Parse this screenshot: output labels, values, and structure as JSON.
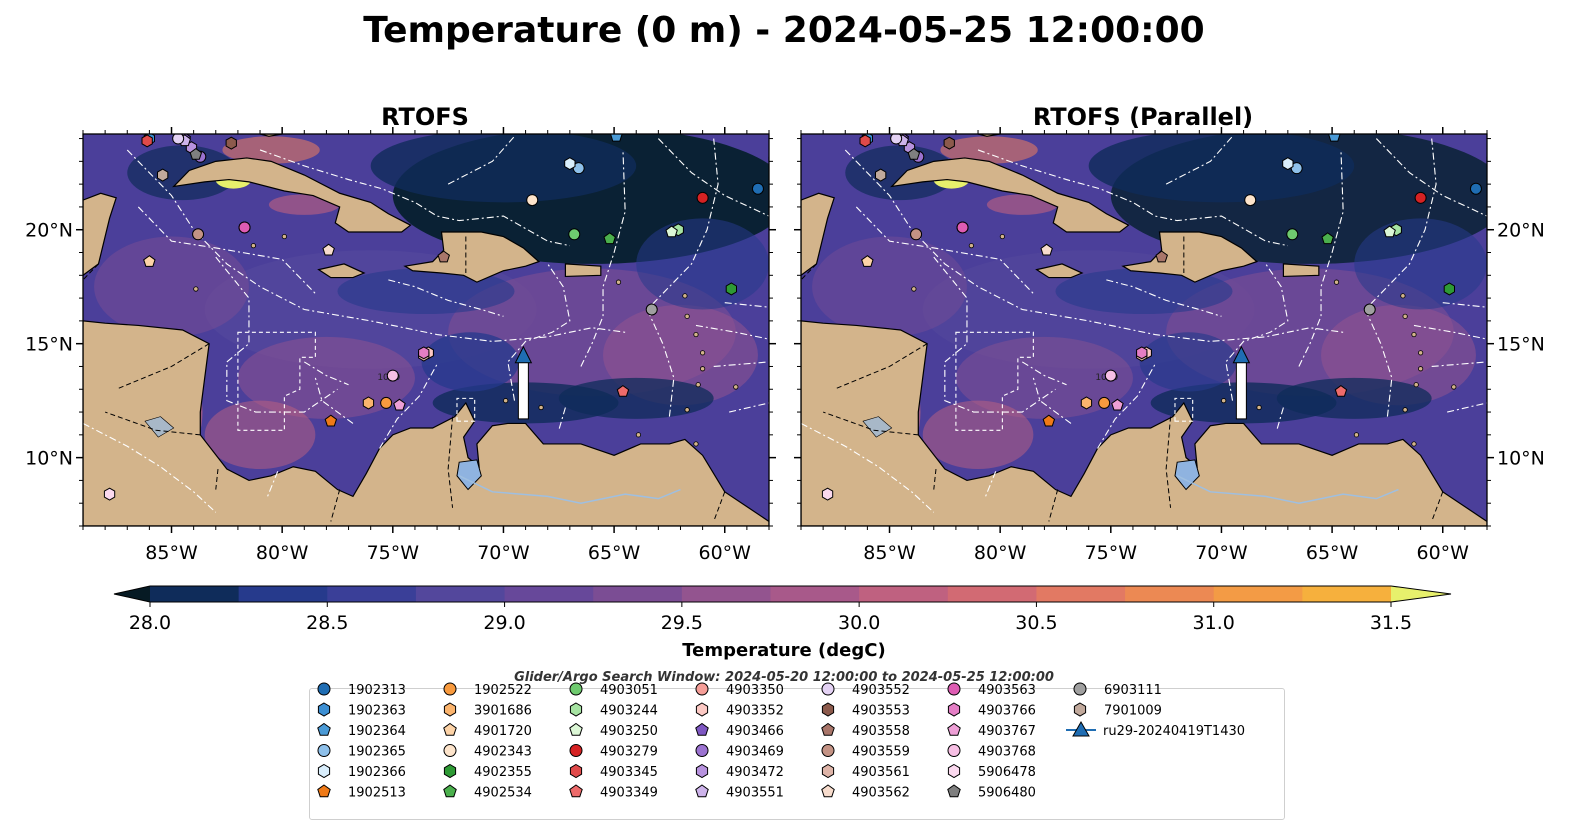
{
  "figure": {
    "title": "Temperature (0 m) - 2024-05-25 12:00:00",
    "search_window_text": "Glider/Argo Search Window: 2024-05-20 12:00:00 to 2024-05-25 12:00:00"
  },
  "panels": [
    {
      "title": "RTOFS"
    },
    {
      "title": "RTOFS (Parallel)"
    }
  ],
  "colorbar": {
    "label": "Temperature (degC)",
    "min": 28.0,
    "max": 31.5,
    "step": 0.25,
    "ticks": [
      "28.0",
      "28.5",
      "29.0",
      "29.5",
      "30.0",
      "30.5",
      "31.0",
      "31.5"
    ],
    "extend": "both",
    "colors": [
      "#06202e",
      "#0f2c5a",
      "#263a8c",
      "#3a3f98",
      "#53479c",
      "#67489a",
      "#7b4d94",
      "#93548f",
      "#a8598a",
      "#bf6180",
      "#d26a73",
      "#e27963",
      "#ec8953",
      "#f39b45",
      "#f6b03d",
      "#f4cc4a",
      "#e7f06c"
    ],
    "under_color": "#061a24",
    "over_color": "#e7f06c"
  },
  "map_labels": {
    "x_ticks": [
      "85°W",
      "80°W",
      "75°W",
      "70°W",
      "65°W",
      "60°W"
    ],
    "y_ticks": [
      "20°N",
      "15°N",
      "10°N"
    ],
    "contour_label": "1000"
  },
  "chart_data": {
    "type": "heatmap",
    "title": "Temperature (0 m) - 2024-05-25 12:00:00",
    "variable": "Temperature (degC)",
    "depth": "0 m",
    "valid_time": "2024-05-25 12:00:00",
    "models": [
      "RTOFS",
      "RTOFS (Parallel)"
    ],
    "xlim": [
      -89,
      -58
    ],
    "ylim": [
      7,
      24.2
    ],
    "x_ticks": [
      -85,
      -80,
      -75,
      -70,
      -65,
      -60
    ],
    "y_ticks": [
      10,
      15,
      20
    ],
    "color_range": [
      28.0,
      31.5
    ],
    "color_levels": [
      28.0,
      28.25,
      28.5,
      28.75,
      29.0,
      29.25,
      29.5,
      29.75,
      30.0,
      30.25,
      30.5,
      30.75,
      31.0,
      31.25,
      31.5
    ],
    "grid": false,
    "legend_placement": "bottom-center",
    "glider_track": {
      "name": "ru29-20240419T1430",
      "start": [
        -69.1,
        11.7
      ],
      "end": [
        -69.1,
        14.6
      ],
      "color": "#1f6db3"
    },
    "floats": [
      {
        "id": "1902313",
        "lon": -58.5,
        "lat": 21.8
      },
      {
        "id": "1902363",
        "lon": -86.0,
        "lat": 24.0
      },
      {
        "id": "1902364",
        "lon": -64.9,
        "lat": 24.1
      },
      {
        "id": "1902365",
        "lon": -66.6,
        "lat": 22.7
      },
      {
        "id": "1902366",
        "lon": -67.0,
        "lat": 22.9
      },
      {
        "id": "1902513",
        "lon": -77.8,
        "lat": 11.6
      },
      {
        "id": "1902522",
        "lon": -75.3,
        "lat": 12.4
      },
      {
        "id": "3901686",
        "lon": -76.1,
        "lat": 12.4
      },
      {
        "id": "4901720",
        "lon": -86.0,
        "lat": 18.6
      },
      {
        "id": "4902343",
        "lon": -68.7,
        "lat": 21.3
      },
      {
        "id": "4902355",
        "lon": -59.7,
        "lat": 17.4
      },
      {
        "id": "4902534",
        "lon": -65.2,
        "lat": 19.6
      },
      {
        "id": "4903051",
        "lon": -66.8,
        "lat": 19.8
      },
      {
        "id": "4903244",
        "lon": -62.1,
        "lat": 20.0
      },
      {
        "id": "4903250",
        "lon": -62.4,
        "lat": 19.9
      },
      {
        "id": "4903279",
        "lon": -61.0,
        "lat": 21.4
      },
      {
        "id": "4903345",
        "lon": -86.1,
        "lat": 23.9
      },
      {
        "id": "4903349",
        "lon": -64.6,
        "lat": 12.9
      },
      {
        "id": "4903350",
        "lon": -81.7,
        "lat": 20.1
      },
      {
        "id": "4903352",
        "lon": -73.4,
        "lat": 14.6
      },
      {
        "id": "4903466",
        "lon": -84.4,
        "lat": 24.0
      },
      {
        "id": "4903469",
        "lon": -83.7,
        "lat": 23.2
      },
      {
        "id": "4903472",
        "lon": -84.1,
        "lat": 23.6
      },
      {
        "id": "4903551",
        "lon": -84.4,
        "lat": 23.9
      },
      {
        "id": "4903552",
        "lon": -84.7,
        "lat": 24.0
      },
      {
        "id": "4903553",
        "lon": -82.3,
        "lat": 23.8
      },
      {
        "id": "4903558",
        "lon": -72.7,
        "lat": 18.8
      },
      {
        "id": "4903559",
        "lon": -83.8,
        "lat": 19.8
      },
      {
        "id": "4903561",
        "lon": -73.6,
        "lat": 14.5
      },
      {
        "id": "4903562",
        "lon": -77.9,
        "lat": 19.1
      },
      {
        "id": "4903563",
        "lon": -81.7,
        "lat": 20.1
      },
      {
        "id": "4903766",
        "lon": -73.6,
        "lat": 14.6
      },
      {
        "id": "4903767",
        "lon": -74.7,
        "lat": 12.3
      },
      {
        "id": "4903768",
        "lon": -75.0,
        "lat": 13.6
      },
      {
        "id": "5906478",
        "lon": -87.8,
        "lat": 8.4
      },
      {
        "id": "5906480",
        "lon": -83.9,
        "lat": 23.3
      },
      {
        "id": "6903111",
        "lon": -63.3,
        "lat": 16.5
      },
      {
        "id": "7901009",
        "lon": -85.4,
        "lat": 22.4
      }
    ]
  },
  "legend": {
    "items": [
      {
        "label": "1902313",
        "color": "#1f6db3",
        "marker": "circle"
      },
      {
        "label": "1902363",
        "color": "#3c8fd3",
        "marker": "hexagon"
      },
      {
        "label": "1902364",
        "color": "#4a9ad6",
        "marker": "pentagon"
      },
      {
        "label": "1902365",
        "color": "#8ec0ea",
        "marker": "circle"
      },
      {
        "label": "1902366",
        "color": "#d9eefc",
        "marker": "hexagon"
      },
      {
        "label": "1902513",
        "color": "#f07a17",
        "marker": "pentagon"
      },
      {
        "label": "1902522",
        "color": "#f89a3e",
        "marker": "circle"
      },
      {
        "label": "3901686",
        "color": "#fbb46d",
        "marker": "hexagon"
      },
      {
        "label": "4901720",
        "color": "#fdd3a7",
        "marker": "pentagon"
      },
      {
        "label": "4902343",
        "color": "#fde4cb",
        "marker": "circle"
      },
      {
        "label": "4902355",
        "color": "#2e9a35",
        "marker": "hexagon"
      },
      {
        "label": "4902534",
        "color": "#4bb04d",
        "marker": "pentagon"
      },
      {
        "label": "4903051",
        "color": "#6fcb6f",
        "marker": "circle"
      },
      {
        "label": "4903244",
        "color": "#a6e3a2",
        "marker": "hexagon"
      },
      {
        "label": "4903250",
        "color": "#dcf7d6",
        "marker": "pentagon"
      },
      {
        "label": "4903279",
        "color": "#d62223",
        "marker": "circle"
      },
      {
        "label": "4903345",
        "color": "#e04a4a",
        "marker": "hexagon"
      },
      {
        "label": "4903349",
        "color": "#ee6b6b",
        "marker": "pentagon"
      },
      {
        "label": "4903350",
        "color": "#f59e98",
        "marker": "circle"
      },
      {
        "label": "4903352",
        "color": "#fcc9c4",
        "marker": "hexagon"
      },
      {
        "label": "4903466",
        "color": "#7e57c2",
        "marker": "pentagon"
      },
      {
        "label": "4903469",
        "color": "#9b72d0",
        "marker": "circle"
      },
      {
        "label": "4903472",
        "color": "#b792de",
        "marker": "hexagon"
      },
      {
        "label": "4903551",
        "color": "#cdb3ea",
        "marker": "pentagon"
      },
      {
        "label": "4903552",
        "color": "#e4d2f4",
        "marker": "circle"
      },
      {
        "label": "4903553",
        "color": "#8c5a4c",
        "marker": "hexagon"
      },
      {
        "label": "4903558",
        "color": "#a9766a",
        "marker": "pentagon"
      },
      {
        "label": "4903559",
        "color": "#c49385",
        "marker": "circle"
      },
      {
        "label": "4903561",
        "color": "#deb4a8",
        "marker": "hexagon"
      },
      {
        "label": "4903562",
        "color": "#f7dccd",
        "marker": "pentagon"
      },
      {
        "label": "4903563",
        "color": "#de5cb3",
        "marker": "circle"
      },
      {
        "label": "4903766",
        "color": "#e47ec5",
        "marker": "hexagon"
      },
      {
        "label": "4903767",
        "color": "#ee9fd6",
        "marker": "pentagon"
      },
      {
        "label": "4903768",
        "color": "#f7bfe4",
        "marker": "circle"
      },
      {
        "label": "5906478",
        "color": "#fbd9ef",
        "marker": "hexagon"
      },
      {
        "label": "5906480",
        "color": "#7f7f7f",
        "marker": "pentagon"
      },
      {
        "label": "6903111",
        "color": "#a0a0a0",
        "marker": "circle"
      },
      {
        "label": "7901009",
        "color": "#c1a99c",
        "marker": "hexagon"
      },
      {
        "label": "ru29-20240419T1430",
        "color": "#1f6db3",
        "marker": "triangle-line"
      }
    ]
  }
}
